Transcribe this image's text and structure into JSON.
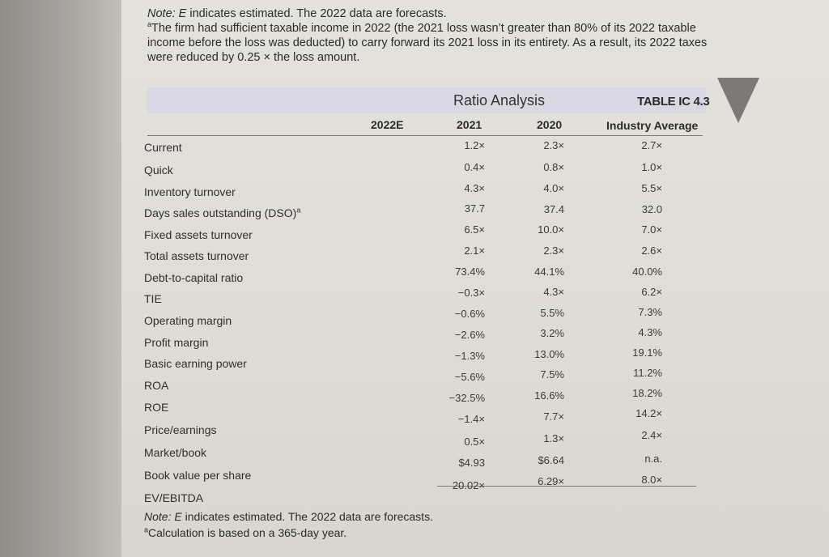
{
  "notes_top": {
    "line1_label": "Note: E",
    "line1_rest": " indicates estimated. The 2022 data are forecasts.",
    "line2_marker": "a",
    "line2_text": "The firm had sufficient taxable income in 2022 (the 2021 loss wasn’t greater than 80% of its 2022 taxable income before the loss was deducted) to carry forward its 2021 loss in its entirety. As a result, its 2022 taxes were reduced by 0.25 × the loss amount."
  },
  "table": {
    "title": "Ratio Analysis",
    "id": "TABLE IC 4.3",
    "headers": {
      "c2022": "2022E",
      "c2021": "2021",
      "c2020": "2020",
      "industry": "Industry Average"
    },
    "rows": [
      {
        "label": "Current",
        "v2021": "1.2×",
        "v2020": "2.3×",
        "ind": "2.7×"
      },
      {
        "label": "Quick",
        "v2021": "0.4×",
        "v2020": "0.8×",
        "ind": "1.0×"
      },
      {
        "label": "Inventory turnover",
        "v2021": "4.3×",
        "v2020": "4.0×",
        "ind": "5.5×"
      },
      {
        "label": "Days sales outstanding (DSO)",
        "sup": "a",
        "v2021": "37.7",
        "v2020": "37.4",
        "ind": "32.0"
      },
      {
        "label": "Fixed assets turnover",
        "v2021": "6.5×",
        "v2020": "10.0×",
        "ind": "7.0×"
      },
      {
        "label": "Total assets turnover",
        "v2021": "2.1×",
        "v2020": "2.3×",
        "ind": "2.6×"
      },
      {
        "label": "Debt-to-capital ratio",
        "v2021": "73.4%",
        "v2020": "44.1%",
        "ind": "40.0%"
      },
      {
        "label": "TIE",
        "v2021": "−0.3×",
        "v2020": "4.3×",
        "ind": "6.2×"
      },
      {
        "label": "Operating margin",
        "v2021": "−0.6%",
        "v2020": "5.5%",
        "ind": "7.3%"
      },
      {
        "label": "Profit margin",
        "v2021": "−2.6%",
        "v2020": "3.2%",
        "ind": "4.3%"
      },
      {
        "label": "Basic earning power",
        "v2021": "−1.3%",
        "v2020": "13.0%",
        "ind": "19.1%"
      },
      {
        "label": "ROA",
        "v2021": "−5.6%",
        "v2020": "7.5%",
        "ind": "11.2%"
      },
      {
        "label": "ROE",
        "v2021": "−32.5%",
        "v2020": "16.6%",
        "ind": "18.2%"
      },
      {
        "label": "Price/earnings",
        "v2021": "−1.4×",
        "v2020": "7.7×",
        "ind": "14.2×"
      },
      {
        "label": "Market/book",
        "v2021": "0.5×",
        "v2020": "1.3×",
        "ind": "2.4×"
      },
      {
        "label": "Book value per share",
        "v2021": "$4.93",
        "v2020": "$6.64",
        "ind": "n.a."
      },
      {
        "label": "EV/EBITDA",
        "v2021": "20.02×",
        "v2020": "6.29×",
        "ind": "8.0×"
      }
    ]
  },
  "notes_bottom": {
    "line1_label": "Note: E",
    "line1_rest": " indicates estimated. The 2022 data are forecasts.",
    "line2_marker": "a",
    "line2_text": "Calculation is based on a 365-day year."
  },
  "icons": {
    "corner_marker": "triangle-marker-icon"
  }
}
